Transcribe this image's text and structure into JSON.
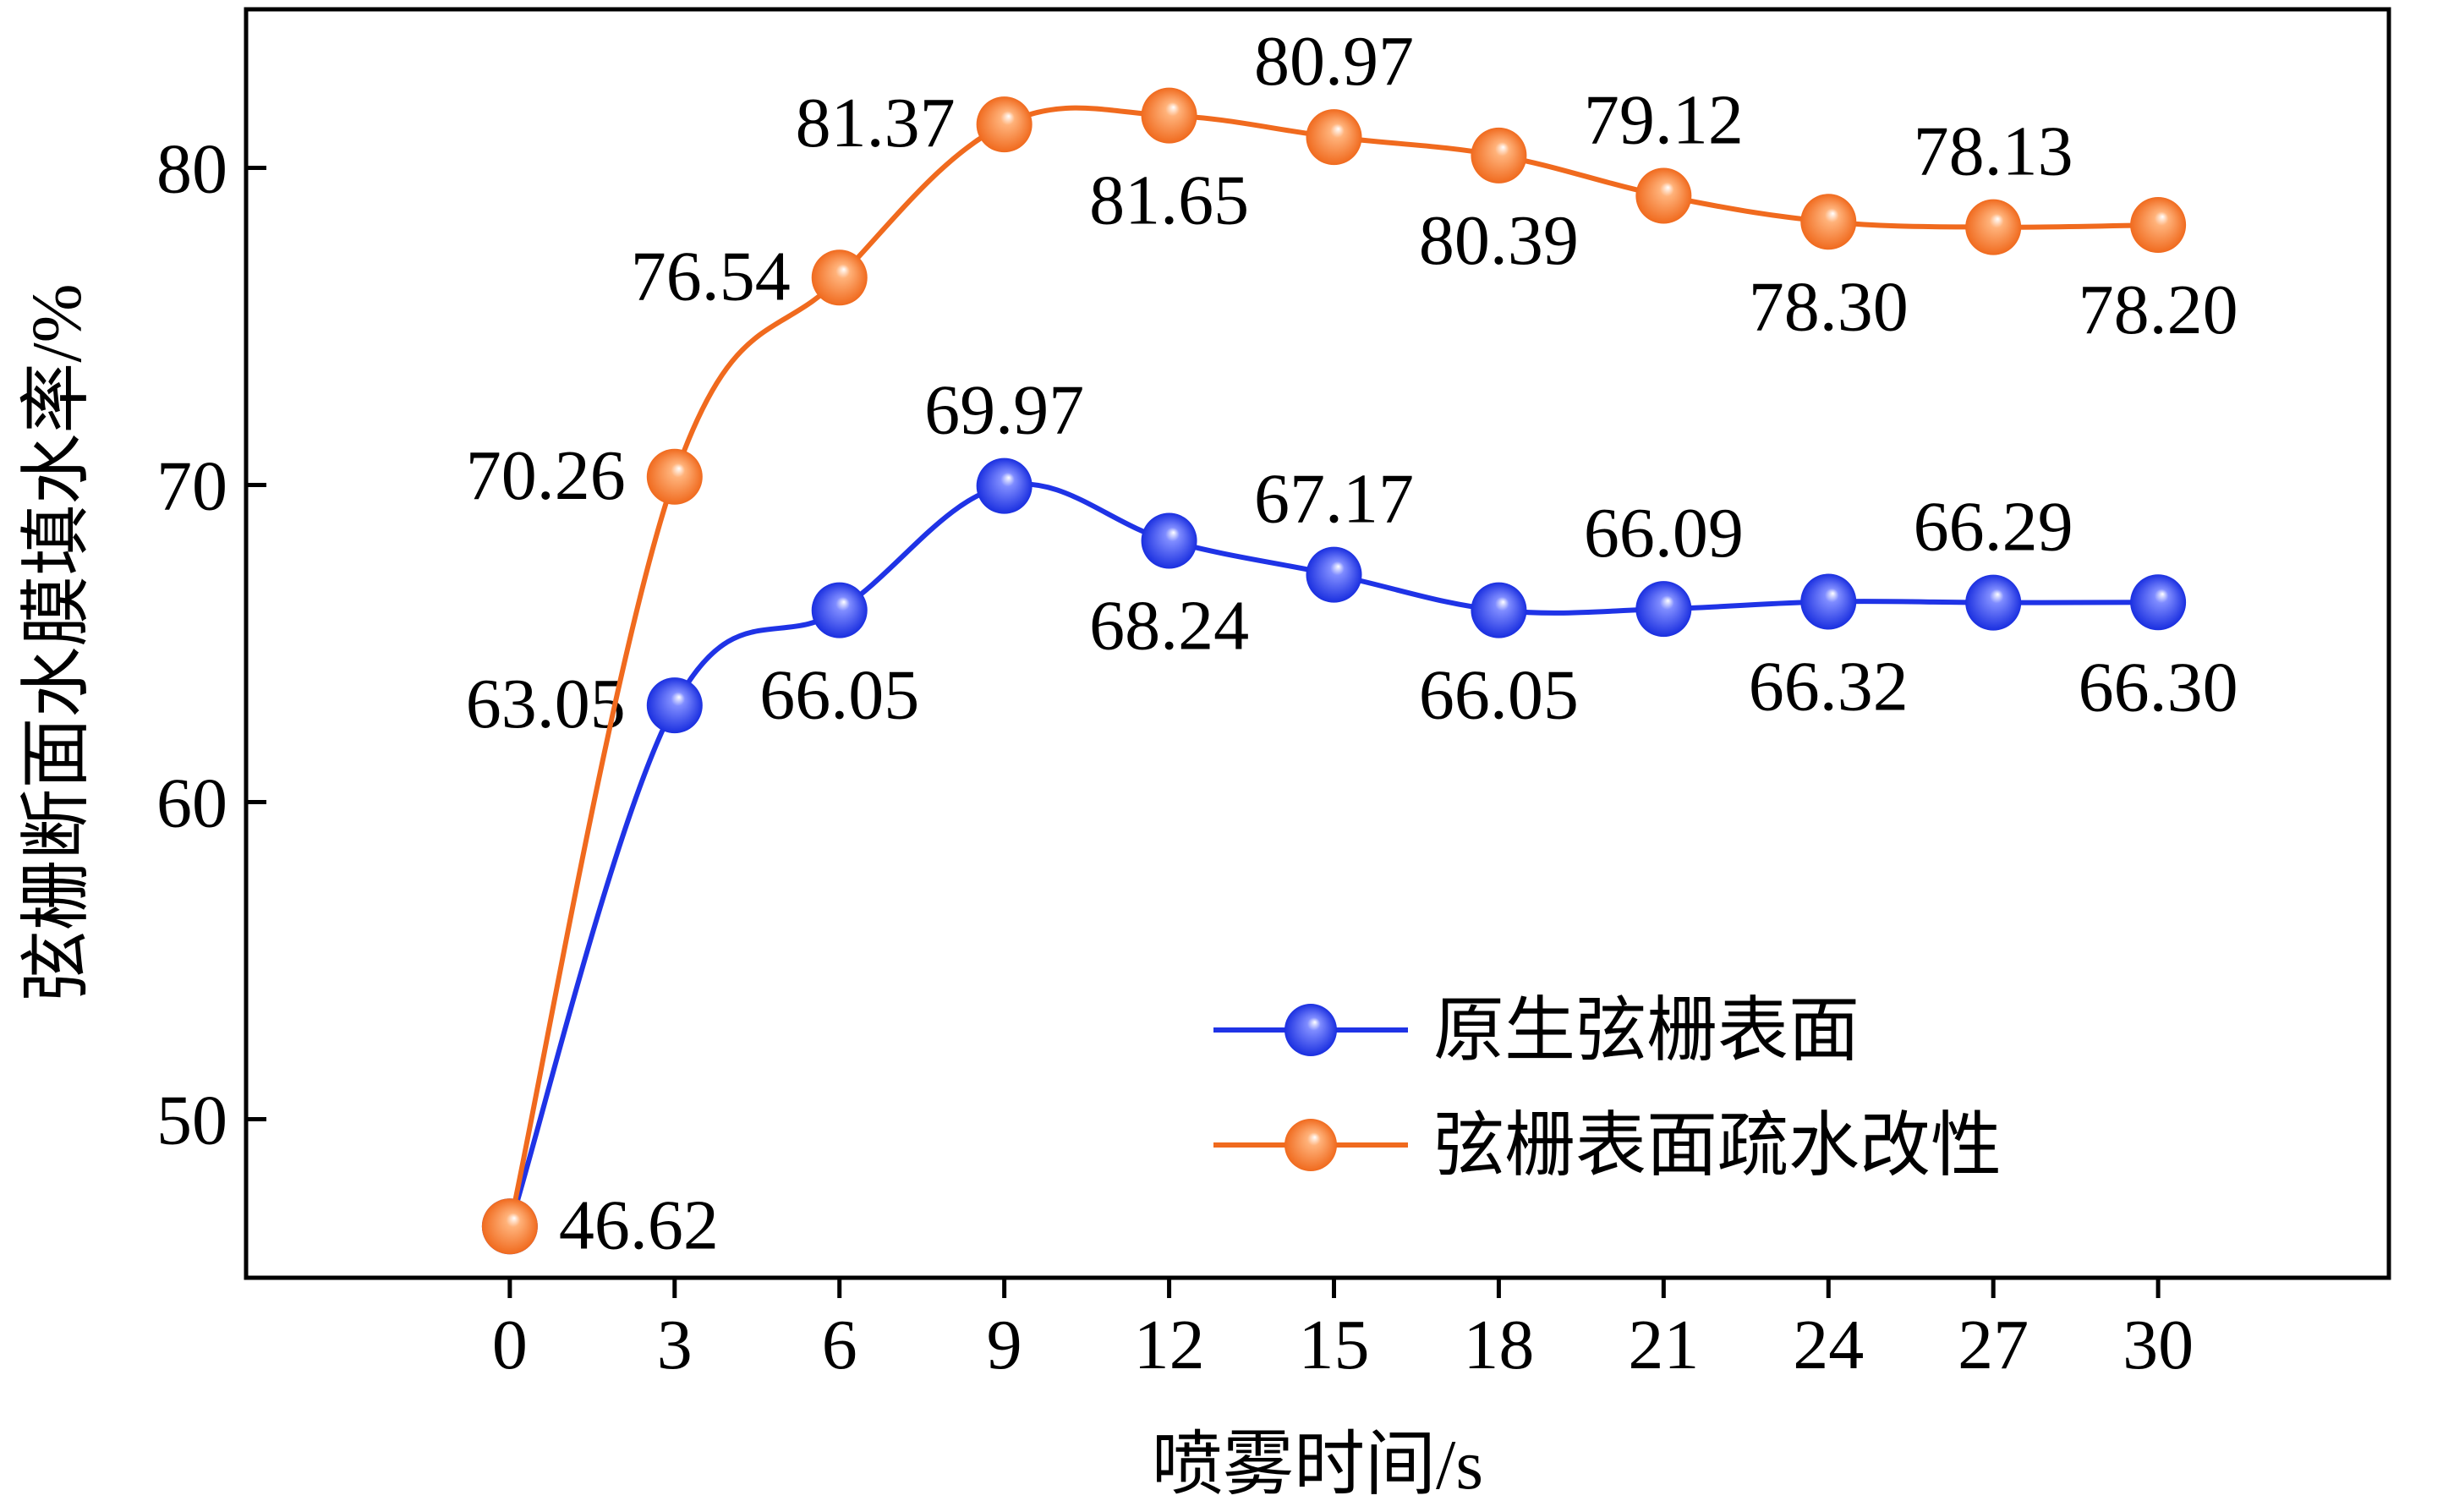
{
  "chart_data": {
    "type": "line",
    "title": "",
    "xlabel": "喷雾时间/s",
    "ylabel": "弦栅断面水膜填水率/%",
    "x": [
      0,
      3,
      6,
      9,
      12,
      15,
      18,
      21,
      24,
      27,
      30
    ],
    "x_ticks": [
      "0",
      "3",
      "6",
      "9",
      "12",
      "15",
      "18",
      "21",
      "24",
      "27",
      "30"
    ],
    "y_ticks": [
      "50",
      "60",
      "70",
      "80"
    ],
    "xlim": [
      -4.8,
      34.2
    ],
    "ylim": [
      45,
      85
    ],
    "grid": false,
    "legend_position": "bottom-right",
    "series": [
      {
        "name": "原生弦栅表面",
        "color": "#1f33e6",
        "values": [
          46.62,
          63.05,
          66.05,
          69.97,
          68.24,
          67.17,
          66.05,
          66.09,
          66.32,
          66.29,
          66.3
        ],
        "labels": [
          "",
          "63.05",
          "66.05",
          "69.97",
          "68.24",
          "67.17",
          "66.05",
          "66.09",
          "66.32",
          "66.29",
          "66.30"
        ]
      },
      {
        "name": "弦栅表面疏水改性",
        "color": "#f06a1e",
        "values": [
          46.62,
          70.26,
          76.54,
          81.37,
          81.65,
          80.97,
          80.39,
          79.12,
          78.3,
          78.13,
          78.2
        ],
        "labels": [
          "46.62",
          "70.26",
          "76.54",
          "81.37",
          "81.65",
          "80.97",
          "80.39",
          "79.12",
          "78.30",
          "78.13",
          "78.20"
        ]
      }
    ]
  }
}
